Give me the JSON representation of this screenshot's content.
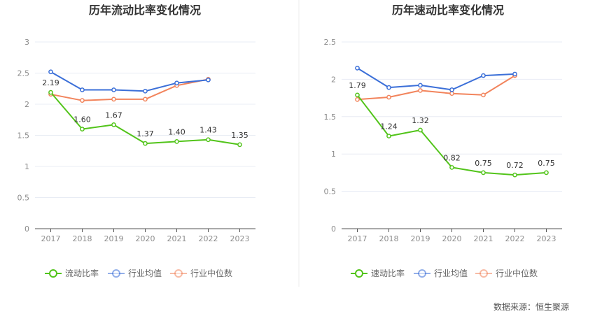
{
  "source": "数据来源：恒生聚源",
  "colors": {
    "main": "#52c41a",
    "avg": "#3b6fd8",
    "median": "#f2845c",
    "grid": "#e8ecf4",
    "axis": "#555555"
  },
  "chart_data": [
    {
      "type": "line",
      "title": "历年流动比率变化情况",
      "categories": [
        "2017",
        "2018",
        "2019",
        "2020",
        "2021",
        "2022",
        "2023"
      ],
      "ylim": [
        0,
        3
      ],
      "yticks": [
        "0",
        "0.5",
        "1",
        "1.5",
        "2",
        "2.5",
        "3"
      ],
      "ytick_values": [
        0,
        0.5,
        1,
        1.5,
        2,
        2.5,
        3
      ],
      "grid": true,
      "legend_position": "bottom",
      "series": [
        {
          "key": "main",
          "name": "流动比率",
          "values": [
            2.19,
            1.6,
            1.67,
            1.37,
            1.4,
            1.43,
            1.35
          ],
          "labels": [
            "2.19",
            "1.60",
            "1.67",
            "1.37",
            "1.40",
            "1.43",
            "1.35"
          ]
        },
        {
          "key": "avg",
          "name": "行业均值",
          "values": [
            2.52,
            2.23,
            2.23,
            2.21,
            2.34,
            2.39,
            null
          ]
        },
        {
          "key": "median",
          "name": "行业中位数",
          "values": [
            2.16,
            2.06,
            2.08,
            2.08,
            2.3,
            2.4,
            null
          ]
        }
      ]
    },
    {
      "type": "line",
      "title": "历年速动比率变化情况",
      "categories": [
        "2017",
        "2018",
        "2019",
        "2020",
        "2021",
        "2022",
        "2023"
      ],
      "ylim": [
        0,
        2.5
      ],
      "yticks": [
        "0",
        "0.5",
        "1",
        "1.5",
        "2",
        "2.5"
      ],
      "ytick_values": [
        0,
        0.5,
        1,
        1.5,
        2,
        2.5
      ],
      "grid": true,
      "legend_position": "bottom",
      "series": [
        {
          "key": "main",
          "name": "速动比率",
          "values": [
            1.79,
            1.24,
            1.32,
            0.82,
            0.75,
            0.72,
            0.75
          ],
          "labels": [
            "1.79",
            "1.24",
            "1.32",
            "0.82",
            "0.75",
            "0.72",
            "0.75"
          ]
        },
        {
          "key": "avg",
          "name": "行业均值",
          "values": [
            2.15,
            1.89,
            1.92,
            1.86,
            2.05,
            2.07,
            null
          ]
        },
        {
          "key": "median",
          "name": "行业中位数",
          "values": [
            1.73,
            1.76,
            1.85,
            1.81,
            1.79,
            2.05,
            null
          ]
        }
      ]
    }
  ]
}
